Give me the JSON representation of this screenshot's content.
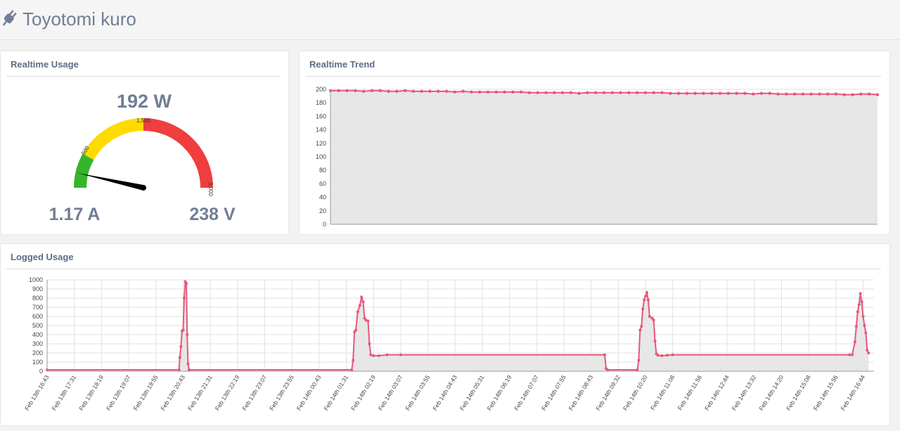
{
  "app": {
    "title": "Toyotomi kuro",
    "icon": "plug-icon"
  },
  "realtime_usage": {
    "title": "Realtime Usage",
    "power": "192 W",
    "current": "1.17 A",
    "voltage": "238 V",
    "gauge": {
      "value": 192,
      "min": 0,
      "max": 3000,
      "tick_labels": [
        "500",
        "1,500",
        "3,000"
      ],
      "zones": [
        {
          "from": 0,
          "to": 500,
          "color": "#36b52b"
        },
        {
          "from": 500,
          "to": 1500,
          "color": "#ffdb00"
        },
        {
          "from": 1500,
          "to": 3000,
          "color": "#f03e3e"
        }
      ]
    }
  },
  "realtime_trend": {
    "title": "Realtime Trend"
  },
  "logged_usage": {
    "title": "Logged Usage"
  },
  "colors": {
    "line": "#e8577a",
    "fill": "#e6e6e6",
    "grid": "#e2e2e2"
  },
  "chart_data": [
    {
      "type": "area",
      "ylim": [
        0,
        200
      ],
      "yticks": [
        "0",
        "20",
        "40",
        "60",
        "80",
        "100",
        "120",
        "140",
        "160",
        "180",
        "200"
      ],
      "values": [
        198,
        198,
        198,
        198,
        197,
        198,
        198,
        197,
        197,
        198,
        197,
        197,
        197,
        197,
        197,
        196,
        197,
        196,
        196,
        196,
        196,
        196,
        196,
        196,
        195,
        195,
        195,
        195,
        195,
        195,
        194,
        195,
        195,
        195,
        195,
        195,
        195,
        195,
        195,
        195,
        195,
        194,
        194,
        194,
        194,
        194,
        194,
        194,
        194,
        194,
        194,
        193,
        194,
        194,
        193,
        193,
        193,
        193,
        193,
        193,
        193,
        193,
        192,
        192,
        193,
        193,
        192
      ]
    },
    {
      "type": "area",
      "ylim": [
        0,
        1000
      ],
      "yticks": [
        "0",
        "100",
        "200",
        "300",
        "400",
        "500",
        "600",
        "700",
        "800",
        "900",
        "1000"
      ],
      "xticks": [
        "Feb 13th 16:43",
        "Feb 13th 17:31",
        "Feb 13th 18:19",
        "Feb 13th 19:07",
        "Feb 13th 19:55",
        "Feb 13th 20:43",
        "Feb 13th 21:31",
        "Feb 13th 22:19",
        "Feb 13th 23:07",
        "Feb 13th 23:55",
        "Feb 14th 00:43",
        "Feb 14th 01:31",
        "Feb 14th 02:19",
        "Feb 14th 03:07",
        "Feb 14th 03:55",
        "Feb 14th 04:43",
        "Feb 14th 05:31",
        "Feb 14th 06:19",
        "Feb 14th 07:07",
        "Feb 14th 07:55",
        "Feb 14th 08:43",
        "Feb 14th 09:32",
        "Feb 14th 10:20",
        "Feb 14th 11:08",
        "Feb 14th 11:56",
        "Feb 14th 12:44",
        "Feb 14th 13:32",
        "Feb 14th 14:20",
        "Feb 14th 15:08",
        "Feb 14th 15:56",
        "Feb 14th 16:44"
      ],
      "points": [
        [
          0,
          15
        ],
        [
          4.85,
          15
        ],
        [
          4.88,
          150
        ],
        [
          4.92,
          270
        ],
        [
          4.96,
          440
        ],
        [
          5.0,
          450
        ],
        [
          5.04,
          800
        ],
        [
          5.08,
          980
        ],
        [
          5.12,
          960
        ],
        [
          5.15,
          400
        ],
        [
          5.18,
          80
        ],
        [
          5.22,
          15
        ],
        [
          11.2,
          15
        ],
        [
          11.25,
          120
        ],
        [
          11.3,
          430
        ],
        [
          11.35,
          450
        ],
        [
          11.42,
          650
        ],
        [
          11.5,
          720
        ],
        [
          11.56,
          810
        ],
        [
          11.62,
          760
        ],
        [
          11.67,
          580
        ],
        [
          11.72,
          560
        ],
        [
          11.8,
          550
        ],
        [
          11.85,
          300
        ],
        [
          11.9,
          180
        ],
        [
          12.0,
          170
        ],
        [
          12.2,
          170
        ],
        [
          12.5,
          180
        ],
        [
          13,
          180
        ],
        [
          20.5,
          180
        ],
        [
          20.55,
          30
        ],
        [
          20.6,
          15
        ],
        [
          21.7,
          15
        ],
        [
          21.75,
          120
        ],
        [
          21.8,
          450
        ],
        [
          21.85,
          490
        ],
        [
          21.9,
          680
        ],
        [
          21.95,
          780
        ],
        [
          22.0,
          820
        ],
        [
          22.05,
          860
        ],
        [
          22.1,
          780
        ],
        [
          22.15,
          600
        ],
        [
          22.25,
          580
        ],
        [
          22.3,
          560
        ],
        [
          22.35,
          330
        ],
        [
          22.4,
          190
        ],
        [
          22.45,
          175
        ],
        [
          22.6,
          170
        ],
        [
          22.8,
          175
        ],
        [
          23,
          180
        ],
        [
          29.5,
          180
        ],
        [
          29.6,
          180
        ],
        [
          29.7,
          320
        ],
        [
          29.75,
          490
        ],
        [
          29.8,
          650
        ],
        [
          29.85,
          730
        ],
        [
          29.9,
          850
        ],
        [
          29.95,
          760
        ],
        [
          30.0,
          600
        ],
        [
          30.05,
          500
        ],
        [
          30.1,
          420
        ],
        [
          30.15,
          230
        ],
        [
          30.2,
          200
        ]
      ]
    }
  ]
}
